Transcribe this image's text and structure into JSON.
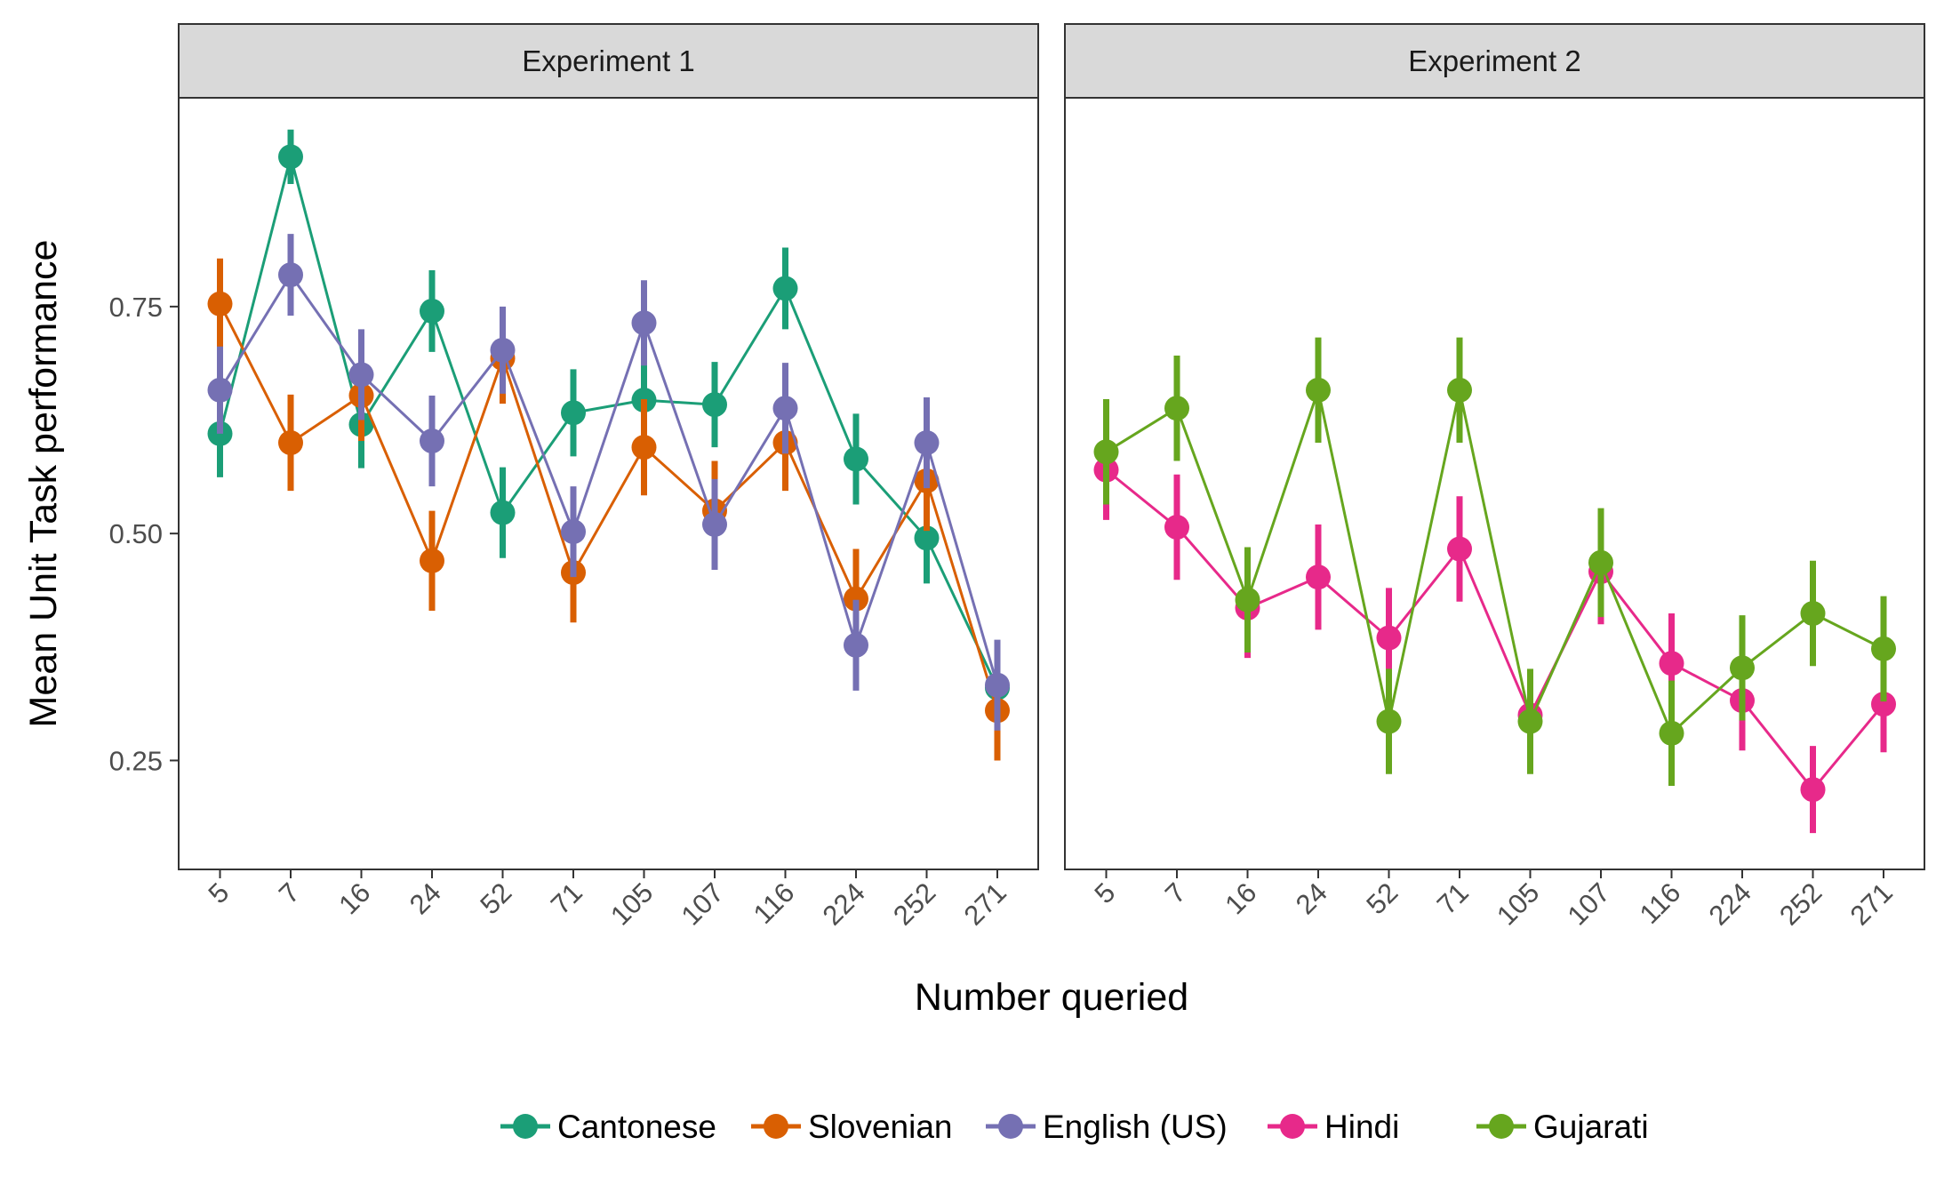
{
  "chart_data": {
    "type": "line",
    "xlabel": "Number queried",
    "ylabel": "Mean Unit Task performance",
    "y_ticks": [
      "0.25",
      "0.50",
      "0.75"
    ],
    "ylim": [
      0.13,
      0.98
    ],
    "grid": false,
    "legend_position": "bottom",
    "categories": [
      "5",
      "7",
      "16",
      "24",
      "52",
      "71",
      "105",
      "107",
      "116",
      "224",
      "252",
      "271"
    ],
    "legend": [
      {
        "name": "Cantonese",
        "color": "#1b9e77"
      },
      {
        "name": "Slovenian",
        "color": "#d95f02"
      },
      {
        "name": "English (US)",
        "color": "#7570b3"
      },
      {
        "name": "Hindi",
        "color": "#e7298a"
      },
      {
        "name": "Gujarati",
        "color": "#66a61e"
      }
    ],
    "panels": [
      {
        "title": "Experiment 1",
        "series": [
          {
            "name": "Cantonese",
            "color": "#1b9e77",
            "values": [
              0.61,
              0.915,
              0.62,
              0.745,
              0.523,
              0.633,
              0.647,
              0.642,
              0.77,
              0.582,
              0.495,
              0.33
            ],
            "err": [
              0.048,
              0.03,
              0.048,
              0.045,
              0.05,
              0.048,
              0.048,
              0.047,
              0.045,
              0.05,
              0.05,
              0.05
            ]
          },
          {
            "name": "Slovenian",
            "color": "#d95f02",
            "values": [
              0.753,
              0.6,
              0.652,
              0.47,
              0.693,
              0.457,
              0.595,
              0.525,
              0.6,
              0.428,
              0.558,
              0.305
            ],
            "err": [
              0.05,
              0.053,
              0.05,
              0.055,
              0.05,
              0.055,
              0.053,
              0.055,
              0.053,
              0.055,
              0.055,
              0.055
            ]
          },
          {
            "name": "English (US)",
            "color": "#7570b3",
            "values": [
              0.658,
              0.785,
              0.675,
              0.602,
              0.702,
              0.502,
              0.732,
              0.51,
              0.638,
              0.377,
              0.6,
              0.333
            ],
            "err": [
              0.048,
              0.045,
              0.05,
              0.05,
              0.048,
              0.05,
              0.047,
              0.05,
              0.05,
              0.05,
              0.05,
              0.05
            ]
          }
        ]
      },
      {
        "title": "Experiment 2",
        "series": [
          {
            "name": "Hindi",
            "color": "#e7298a",
            "values": [
              0.57,
              0.507,
              0.418,
              0.452,
              0.385,
              0.483,
              0.3,
              0.458,
              0.357,
              0.316,
              0.218,
              0.312
            ],
            "err": [
              0.055,
              0.058,
              0.055,
              0.058,
              0.055,
              0.058,
              0.05,
              0.058,
              0.055,
              0.055,
              0.048,
              0.053
            ]
          },
          {
            "name": "Gujarati",
            "color": "#66a61e",
            "values": [
              0.59,
              0.638,
              0.427,
              0.658,
              0.293,
              0.658,
              0.293,
              0.468,
              0.28,
              0.352,
              0.412,
              0.373
            ],
            "err": [
              0.058,
              0.058,
              0.058,
              0.058,
              0.058,
              0.058,
              0.058,
              0.06,
              0.058,
              0.058,
              0.058,
              0.058
            ]
          }
        ]
      }
    ]
  }
}
